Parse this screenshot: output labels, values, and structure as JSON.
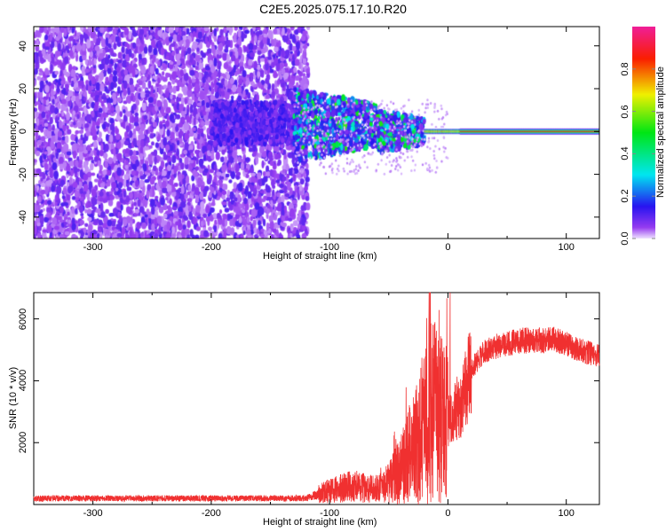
{
  "title": "C2E5.2025.075.17.10.R20",
  "chart_data": [
    {
      "type": "heatmap",
      "xlabel": "Height of straight line (km)",
      "ylabel": "Frequency (Hz)",
      "xlim": [
        -350,
        128
      ],
      "ylim": [
        -50,
        49
      ],
      "xticks": [
        -300,
        -200,
        -100,
        0,
        100
      ],
      "yticks": [
        -40,
        -20,
        0,
        20,
        40
      ],
      "colorbar": {
        "label": "Normalized spectral amplitude",
        "range": [
          0,
          1
        ],
        "ticks": [
          "0.0",
          "0.2",
          "0.4",
          "0.6",
          "0.8"
        ]
      },
      "regions": [
        {
          "x_range": [
            -350,
            -120
          ],
          "freq_range": [
            -50,
            49
          ],
          "amplitude": 0.05,
          "description": "scattered noise"
        },
        {
          "x_range": [
            -130,
            -20
          ],
          "freq_range": [
            -15,
            12
          ],
          "amplitude": 0.35
        },
        {
          "x_range": [
            -20,
            128
          ],
          "freq_center": 0,
          "amplitude": 0.9
        }
      ]
    },
    {
      "type": "line",
      "xlabel": "Height of straight line (km)",
      "ylabel": "SNR (10 * v/v)",
      "xlim": [
        -350,
        128
      ],
      "ylim": [
        0,
        6850
      ],
      "xticks": [
        -300,
        -200,
        -100,
        0,
        100
      ],
      "yticks": [
        2000,
        4000,
        6000
      ],
      "series": [
        {
          "name": "SNR",
          "color": "#f03030",
          "x": [
            -350,
            -120,
            -100,
            -80,
            -60,
            -50,
            -40,
            -30,
            -20,
            -15,
            -10,
            -5,
            0,
            10,
            20,
            30,
            40,
            60,
            80,
            90,
            100,
            110,
            128
          ],
          "y": [
            200,
            200,
            450,
            600,
            500,
            700,
            1100,
            1800,
            2600,
            3500,
            3000,
            2700,
            2600,
            3200,
            4400,
            4900,
            5100,
            5300,
            5300,
            5350,
            5200,
            5000,
            4800
          ]
        }
      ]
    }
  ]
}
